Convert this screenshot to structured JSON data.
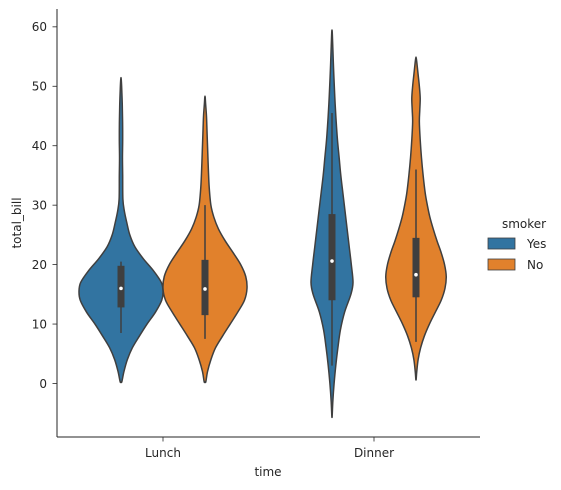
{
  "chart_data": {
    "type": "violin",
    "xlabel": "time",
    "ylabel": "total_bill",
    "categories": [
      "Lunch",
      "Dinner"
    ],
    "ylim": [
      -9,
      63
    ],
    "yticks": [
      0,
      10,
      20,
      30,
      40,
      50,
      60
    ],
    "grid": false,
    "legend": {
      "title": "smoker",
      "placement": "center-right"
    },
    "series": [
      {
        "name": "Yes",
        "color": "#3274a1",
        "groups": [
          {
            "category": "Lunch",
            "whisker": [
              8.5,
              20.5
            ],
            "q1": 12.8,
            "median": 16.0,
            "q3": 19.8,
            "density": [
              [
                0.3,
                0.02
              ],
              [
                2,
                0.07
              ],
              [
                4,
                0.15
              ],
              [
                6,
                0.27
              ],
              [
                8,
                0.44
              ],
              [
                10,
                0.62
              ],
              [
                12,
                0.82
              ],
              [
                14,
                0.97
              ],
              [
                15.5,
                1.0
              ],
              [
                17,
                0.96
              ],
              [
                19,
                0.77
              ],
              [
                21,
                0.53
              ],
              [
                23,
                0.33
              ],
              [
                25,
                0.21
              ],
              [
                27,
                0.14
              ],
              [
                29,
                0.08
              ],
              [
                31,
                0.045
              ],
              [
                35,
                0.04
              ],
              [
                38,
                0.035
              ],
              [
                41,
                0.04
              ],
              [
                44,
                0.038
              ],
              [
                47,
                0.03
              ],
              [
                50,
                0.015
              ],
              [
                51.3,
                0.004
              ]
            ]
          },
          {
            "category": "Dinner",
            "whisker": [
              3,
              45.5
            ],
            "q1": 14.0,
            "median": 20.6,
            "q3": 28.5,
            "density": [
              [
                -5.5,
                0.004
              ],
              [
                -3,
                0.02
              ],
              [
                0,
                0.05
              ],
              [
                3,
                0.09
              ],
              [
                6,
                0.14
              ],
              [
                9,
                0.2
              ],
              [
                12,
                0.3
              ],
              [
                15,
                0.45
              ],
              [
                17,
                0.5
              ],
              [
                20,
                0.46
              ],
              [
                23,
                0.41
              ],
              [
                26,
                0.36
              ],
              [
                29,
                0.31
              ],
              [
                32,
                0.26
              ],
              [
                35,
                0.21
              ],
              [
                38,
                0.17
              ],
              [
                41,
                0.13
              ],
              [
                44,
                0.1
              ],
              [
                47,
                0.075
              ],
              [
                50,
                0.055
              ],
              [
                53,
                0.037
              ],
              [
                56,
                0.022
              ],
              [
                58,
                0.012
              ],
              [
                59.3,
                0.004
              ]
            ]
          }
        ]
      },
      {
        "name": "No",
        "color": "#e1812c",
        "groups": [
          {
            "category": "Lunch",
            "whisker": [
              7.5,
              30
            ],
            "q1": 11.5,
            "median": 15.9,
            "q3": 20.8,
            "density": [
              [
                0.3,
                0.02
              ],
              [
                2,
                0.06
              ],
              [
                4,
                0.14
              ],
              [
                6,
                0.25
              ],
              [
                8,
                0.42
              ],
              [
                10,
                0.6
              ],
              [
                12,
                0.78
              ],
              [
                14,
                0.94
              ],
              [
                16,
                1.0
              ],
              [
                18,
                0.97
              ],
              [
                20,
                0.85
              ],
              [
                22,
                0.67
              ],
              [
                24,
                0.48
              ],
              [
                26,
                0.32
              ],
              [
                28,
                0.21
              ],
              [
                30,
                0.14
              ],
              [
                33,
                0.1
              ],
              [
                36,
                0.08
              ],
              [
                39,
                0.065
              ],
              [
                42,
                0.05
              ],
              [
                45,
                0.035
              ],
              [
                47,
                0.015
              ],
              [
                48.2,
                0.004
              ]
            ]
          },
          {
            "category": "Dinner",
            "whisker": [
              7,
              36
            ],
            "q1": 14.5,
            "median": 18.3,
            "q3": 24.5,
            "density": [
              [
                0.7,
                0.004
              ],
              [
                2,
                0.018
              ],
              [
                4,
                0.05
              ],
              [
                6,
                0.11
              ],
              [
                8,
                0.2
              ],
              [
                10,
                0.32
              ],
              [
                12,
                0.46
              ],
              [
                14,
                0.6
              ],
              [
                16,
                0.69
              ],
              [
                18,
                0.72
              ],
              [
                20,
                0.68
              ],
              [
                22,
                0.6
              ],
              [
                24,
                0.5
              ],
              [
                26,
                0.41
              ],
              [
                28,
                0.33
              ],
              [
                30,
                0.27
              ],
              [
                32,
                0.22
              ],
              [
                35,
                0.17
              ],
              [
                38,
                0.13
              ],
              [
                41,
                0.1
              ],
              [
                44,
                0.08
              ],
              [
                46,
                0.09
              ],
              [
                48,
                0.1
              ],
              [
                50,
                0.08
              ],
              [
                52,
                0.05
              ],
              [
                54,
                0.02
              ],
              [
                54.8,
                0.004
              ]
            ]
          }
        ]
      }
    ]
  }
}
